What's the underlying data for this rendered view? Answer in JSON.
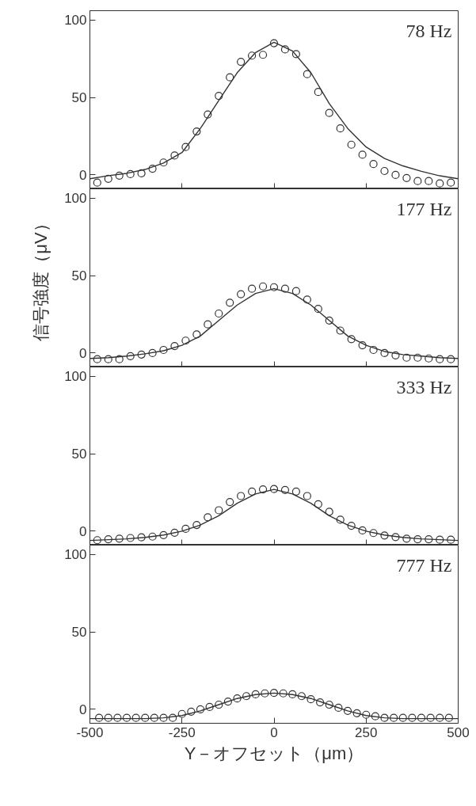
{
  "chart_data": [
    {
      "type": "scatter",
      "annotations": [
        "78 Hz"
      ],
      "xlim": [
        -500,
        500
      ],
      "xticks": [
        -500,
        -250,
        0,
        250,
        500
      ],
      "ylim": [
        -9,
        106
      ],
      "yticks": [
        0,
        50,
        100
      ],
      "tick_labels": "y",
      "grid": false,
      "series": [
        {
          "marker": "circle",
          "color": "#333333",
          "x": [
            -480,
            -450,
            -420,
            -390,
            -360,
            -330,
            -300,
            -270,
            -240,
            -210,
            -180,
            -150,
            -120,
            -90,
            -60,
            -30,
            0,
            30,
            60,
            90,
            120,
            150,
            180,
            210,
            240,
            270,
            300,
            330,
            360,
            390,
            420,
            450,
            480
          ],
          "values": [
            -5,
            -2.5,
            -0.5,
            0.5,
            1,
            4,
            8,
            12.5,
            18,
            28,
            39,
            51,
            63,
            73,
            77,
            77.5,
            85,
            81,
            78,
            65,
            53.5,
            40,
            30,
            19.5,
            13,
            7,
            2.5,
            0,
            -2,
            -4,
            -4,
            -5.5,
            -5
          ]
        },
        {
          "type": "line",
          "color": "#333333",
          "x": [
            -500,
            -450,
            -400,
            -350,
            -300,
            -250,
            -200,
            -150,
            -100,
            -50,
            0,
            50,
            100,
            150,
            200,
            250,
            300,
            350,
            400,
            450,
            500
          ],
          "values": [
            -2.5,
            -0.5,
            1,
            3.5,
            7.7,
            14.4,
            30,
            48,
            66,
            79,
            85.6,
            80,
            66,
            46,
            30,
            18,
            10.6,
            5.8,
            2.3,
            -0.6,
            -2.5
          ]
        }
      ]
    },
    {
      "type": "scatter",
      "annotations": [
        "177 Hz"
      ],
      "ylabel": "信号強度（μV）",
      "xlim": [
        -500,
        500
      ],
      "xticks": [
        -500,
        -250,
        0,
        250,
        500
      ],
      "ylim": [
        -9,
        106
      ],
      "yticks": [
        0,
        50,
        100
      ],
      "tick_labels": "y",
      "grid": false,
      "series": [
        {
          "marker": "circle",
          "color": "#333333",
          "x": [
            -480,
            -450,
            -420,
            -390,
            -360,
            -330,
            -300,
            -270,
            -240,
            -210,
            -180,
            -150,
            -120,
            -90,
            -60,
            -30,
            0,
            30,
            60,
            90,
            120,
            150,
            180,
            210,
            240,
            270,
            300,
            330,
            360,
            390,
            420,
            450,
            480
          ],
          "values": [
            -4,
            -4,
            -4,
            -2,
            -1,
            0,
            2,
            4.5,
            8,
            12,
            18.5,
            25.5,
            32.5,
            38,
            41.5,
            43,
            42.5,
            41.5,
            40,
            34.5,
            28.5,
            21,
            14.5,
            9,
            5,
            2,
            0,
            -1.5,
            -3,
            -3,
            -3.5,
            -4,
            -4
          ]
        },
        {
          "type": "line",
          "color": "#333333",
          "x": [
            -500,
            -450,
            -400,
            -350,
            -300,
            -250,
            -200,
            -150,
            -100,
            -50,
            0,
            50,
            100,
            150,
            200,
            250,
            300,
            350,
            400,
            450,
            500
          ],
          "values": [
            -3.5,
            -3,
            -2,
            -0.5,
            1.5,
            5,
            11,
            21,
            31,
            38.5,
            41.5,
            38.5,
            31,
            21,
            11,
            5,
            1,
            -1,
            -2,
            -3,
            -3.5
          ]
        }
      ]
    },
    {
      "type": "scatter",
      "annotations": [
        "333 Hz"
      ],
      "xlim": [
        -500,
        500
      ],
      "xticks": [
        -500,
        -250,
        0,
        250,
        500
      ],
      "ylim": [
        -9,
        106
      ],
      "yticks": [
        0,
        50,
        100
      ],
      "tick_labels": "y",
      "grid": false,
      "series": [
        {
          "marker": "circle",
          "color": "#333333",
          "x": [
            -480,
            -450,
            -420,
            -390,
            -360,
            -330,
            -300,
            -270,
            -240,
            -210,
            -180,
            -150,
            -120,
            -90,
            -60,
            -30,
            0,
            30,
            60,
            90,
            120,
            150,
            180,
            210,
            240,
            270,
            300,
            330,
            360,
            390,
            420,
            450,
            480
          ],
          "values": [
            -5.8,
            -5.2,
            -4.8,
            -4.4,
            -4,
            -3.5,
            -2.5,
            -1,
            1.5,
            4,
            9,
            13.5,
            18.8,
            22.7,
            25.6,
            27,
            27.2,
            26.6,
            25.6,
            22.7,
            17.4,
            12.5,
            7.4,
            3.5,
            0.5,
            -1.2,
            -2.8,
            -3.8,
            -4.8,
            -5.2,
            -5.2,
            -5.5,
            -5.5
          ]
        },
        {
          "type": "line",
          "color": "#333333",
          "x": [
            -500,
            -450,
            -400,
            -350,
            -300,
            -250,
            -200,
            -150,
            -100,
            -50,
            0,
            50,
            100,
            150,
            200,
            250,
            300,
            350,
            400,
            450,
            500
          ],
          "values": [
            -6,
            -5.5,
            -5,
            -4,
            -2.5,
            0,
            4,
            10,
            18,
            24,
            27,
            24,
            18,
            10,
            4,
            0,
            -2.5,
            -4,
            -5,
            -5.5,
            -6
          ]
        }
      ]
    },
    {
      "type": "scatter",
      "annotations": [
        "777 Hz"
      ],
      "xlabel": "Y－オフセット（μm）",
      "xlim": [
        -500,
        500
      ],
      "xticks": [
        -500,
        -250,
        0,
        250,
        500
      ],
      "ylim": [
        -9,
        106
      ],
      "yticks": [
        0,
        50,
        100
      ],
      "grid": false,
      "series": [
        {
          "marker": "circle",
          "color": "#333333",
          "x": [
            -475,
            -450,
            -425,
            -400,
            -375,
            -350,
            -325,
            -300,
            -275,
            -250,
            -225,
            -200,
            -175,
            -150,
            -125,
            -100,
            -75,
            -50,
            -25,
            0,
            25,
            50,
            75,
            100,
            125,
            150,
            175,
            200,
            225,
            250,
            275,
            300,
            325,
            350,
            375,
            400,
            425,
            450,
            475
          ],
          "values": [
            -5.5,
            -5.5,
            -5.5,
            -5.5,
            -5.5,
            -5.5,
            -5.5,
            -5.5,
            -5.5,
            -3,
            -1.5,
            0,
            1.5,
            3,
            5,
            7,
            8.5,
            9.7,
            10.3,
            10.6,
            10.3,
            9.7,
            8.5,
            6.5,
            4.5,
            3,
            1,
            -1,
            -2.5,
            -3.5,
            -4.5,
            -5.5,
            -5.5,
            -5.5,
            -5.5,
            -5.5,
            -5.5,
            -5.5,
            -5.5
          ]
        },
        {
          "type": "line",
          "color": "#333333",
          "x": [
            -500,
            -450,
            -400,
            -350,
            -300,
            -250,
            -200,
            -150,
            -100,
            -50,
            0,
            50,
            100,
            150,
            200,
            250,
            300,
            350,
            400,
            450,
            500
          ],
          "values": [
            -6,
            -6,
            -6,
            -6,
            -5.5,
            -4,
            -1,
            3,
            7,
            9.5,
            10.5,
            9.5,
            7,
            3,
            -1,
            -4,
            -5.5,
            -6,
            -6,
            -6,
            -6
          ]
        }
      ]
    }
  ]
}
